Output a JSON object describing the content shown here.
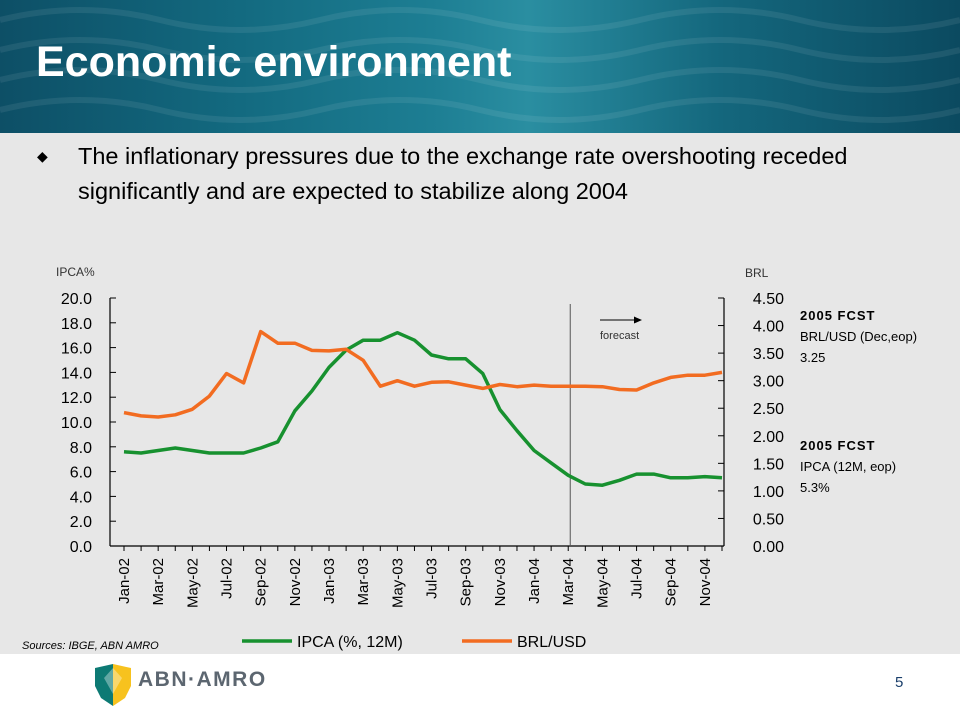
{
  "header": {
    "title": "Economic environment"
  },
  "bullet": {
    "marker": "◆",
    "text": "The inflationary pressures due to the exchange rate overshooting receded significantly and are expected to stabilize along 2004"
  },
  "forecast_notes": [
    {
      "heading": "2005 FCST",
      "line1": "BRL/USD  (Dec,eop)",
      "line2": "3.25"
    },
    {
      "heading": "2005 FCST",
      "line1": "IPCA (12M,  eop)",
      "line2": "5.3%"
    }
  ],
  "footer": {
    "sources": "Sources: IBGE, ABN AMRO",
    "brand": "ABN·AMRO",
    "page_number": "5"
  },
  "colors": {
    "ipca": "#17912f",
    "brl": "#f26c21",
    "header": "#136a80",
    "content_bg": "#e7e7e7"
  },
  "chart_data": {
    "type": "line",
    "x": [
      "Jan-02",
      "Feb-02",
      "Mar-02",
      "Apr-02",
      "May-02",
      "Jun-02",
      "Jul-02",
      "Aug-02",
      "Sep-02",
      "Oct-02",
      "Nov-02",
      "Dec-02",
      "Jan-03",
      "Feb-03",
      "Mar-03",
      "Apr-03",
      "May-03",
      "Jun-03",
      "Jul-03",
      "Aug-03",
      "Sep-03",
      "Oct-03",
      "Nov-03",
      "Dec-03",
      "Jan-04",
      "Feb-04",
      "Mar-04",
      "Apr-04",
      "May-04",
      "Jun-04",
      "Jul-04",
      "Aug-04",
      "Sep-04",
      "Oct-04",
      "Nov-04",
      "Dec-04"
    ],
    "x_tick_labels": [
      "Jan-02",
      "Mar-02",
      "May-02",
      "Jul-02",
      "Sep-02",
      "Nov-02",
      "Jan-03",
      "Mar-03",
      "May-03",
      "Jul-03",
      "Sep-03",
      "Nov-03",
      "Jan-04",
      "Mar-04",
      "May-04",
      "Jul-04",
      "Sep-04",
      "Nov-04"
    ],
    "series": [
      {
        "name": "IPCA (%, 12M)",
        "axis": "left",
        "values": [
          7.6,
          7.5,
          7.7,
          7.9,
          7.7,
          7.5,
          7.5,
          7.5,
          7.9,
          8.4,
          10.9,
          12.5,
          14.4,
          15.8,
          16.6,
          16.6,
          17.2,
          16.6,
          15.4,
          15.1,
          15.1,
          13.9,
          11.0,
          9.3,
          7.7,
          6.7,
          5.7,
          5.0,
          4.9,
          5.3,
          5.8,
          5.8,
          5.5,
          5.5,
          5.6,
          5.5
        ]
      },
      {
        "name": "BRL/USD",
        "axis": "right",
        "values": [
          2.42,
          2.36,
          2.34,
          2.38,
          2.48,
          2.72,
          3.13,
          2.96,
          3.89,
          3.68,
          3.68,
          3.55,
          3.54,
          3.57,
          3.37,
          2.9,
          3.0,
          2.9,
          2.97,
          2.98,
          2.92,
          2.86,
          2.93,
          2.89,
          2.92,
          2.9,
          2.9,
          2.9,
          2.89,
          2.84,
          2.83,
          2.96,
          3.06,
          3.1,
          3.1,
          3.15
        ]
      }
    ],
    "left_axis": {
      "label": "IPCA%",
      "min": 0,
      "max": 20,
      "ticks": [
        "0.0",
        "2.0",
        "4.0",
        "6.0",
        "8.0",
        "10.0",
        "12.0",
        "14.0",
        "16.0",
        "18.0",
        "20.0"
      ]
    },
    "right_axis": {
      "label": "BRL",
      "min": 0,
      "max": 4.5,
      "ticks": [
        "0.00",
        "0.50",
        "1.00",
        "1.50",
        "2.00",
        "2.50",
        "3.00",
        "3.50",
        "4.00",
        "4.50"
      ]
    },
    "forecast_start": "Mar-04",
    "forecast_label": "forecast",
    "legend_position": "bottom",
    "grid": false
  }
}
